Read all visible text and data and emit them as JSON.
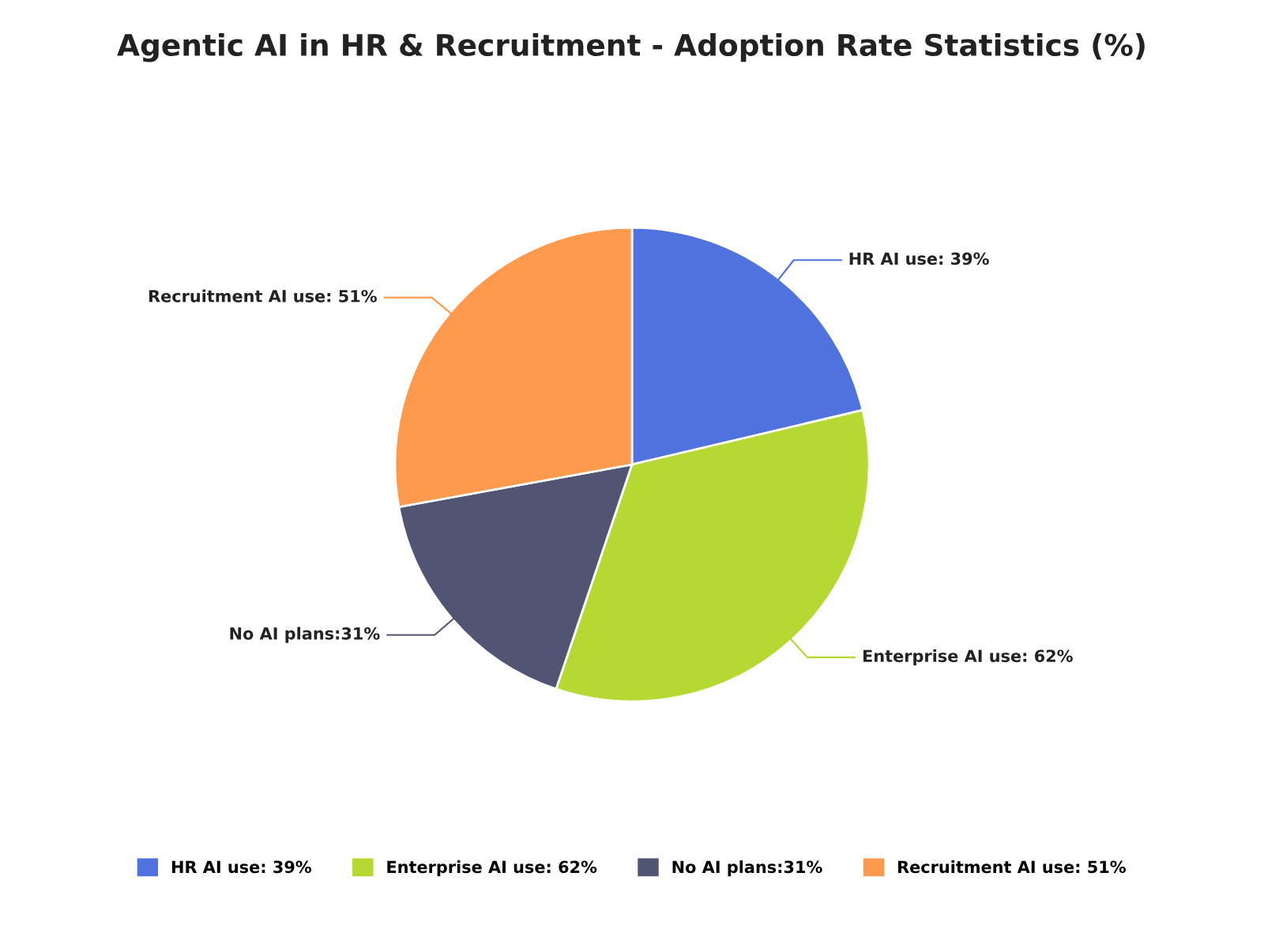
{
  "chart_data": {
    "type": "pie",
    "title": "Agentic AI in HR & Recruitment - Adoption Rate Statistics (%)",
    "categories": [
      "HR AI use: 39%",
      "Enterprise AI use: 62%",
      "No AI plans:31%",
      "Recruitment AI use: 51%"
    ],
    "values": [
      39,
      62,
      31,
      51
    ],
    "colors": [
      "#5072de",
      "#b5d833",
      "#515472",
      "#fd9a4e"
    ],
    "legend": "bottom"
  }
}
